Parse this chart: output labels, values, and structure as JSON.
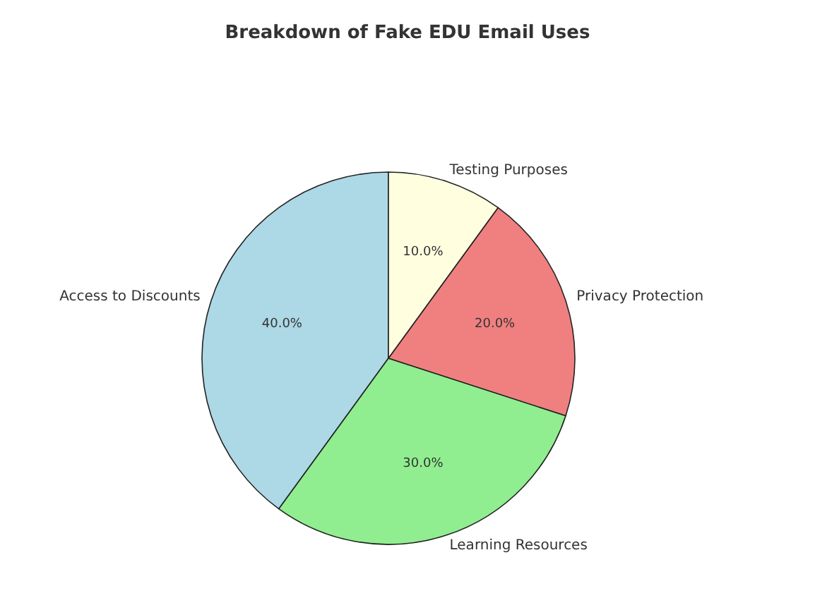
{
  "chart_data": {
    "type": "pie",
    "title": "Breakdown of Fake EDU Email Uses",
    "categories": [
      "Access to Discounts",
      "Learning Resources",
      "Privacy Protection",
      "Testing Purposes"
    ],
    "values": [
      40,
      30,
      20,
      10
    ],
    "colors": [
      "#add8e6",
      "#90ee90",
      "#f08080",
      "#ffffe0"
    ],
    "value_labels": [
      "40.0%",
      "30.0%",
      "20.0%",
      "10.0%"
    ]
  }
}
